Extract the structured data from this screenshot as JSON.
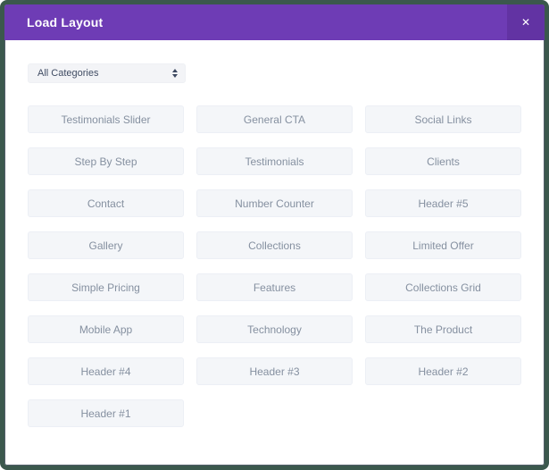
{
  "modal": {
    "title": "Load Layout",
    "close_icon": "✕"
  },
  "filter": {
    "selected": "All Categories"
  },
  "layouts": [
    "Testimonials Slider",
    "General CTA",
    "Social Links",
    "Step By Step",
    "Testimonials",
    "Clients",
    "Contact",
    "Number Counter",
    "Header #5",
    "Gallery",
    "Collections",
    "Limited Offer",
    "Simple Pricing",
    "Features",
    "Collections Grid",
    "Mobile App",
    "Technology",
    "The Product",
    "Header #4",
    "Header #3",
    "Header #2",
    "Header #1"
  ],
  "colors": {
    "frame_border": "#3b584d",
    "header_purple": "#6e3cb5",
    "close_purple": "#6233a3",
    "button_bg": "#f4f6f9",
    "button_border": "#eceff5",
    "button_text": "#8590a0",
    "select_bg": "#f3f4f7",
    "select_text": "#404c63"
  }
}
